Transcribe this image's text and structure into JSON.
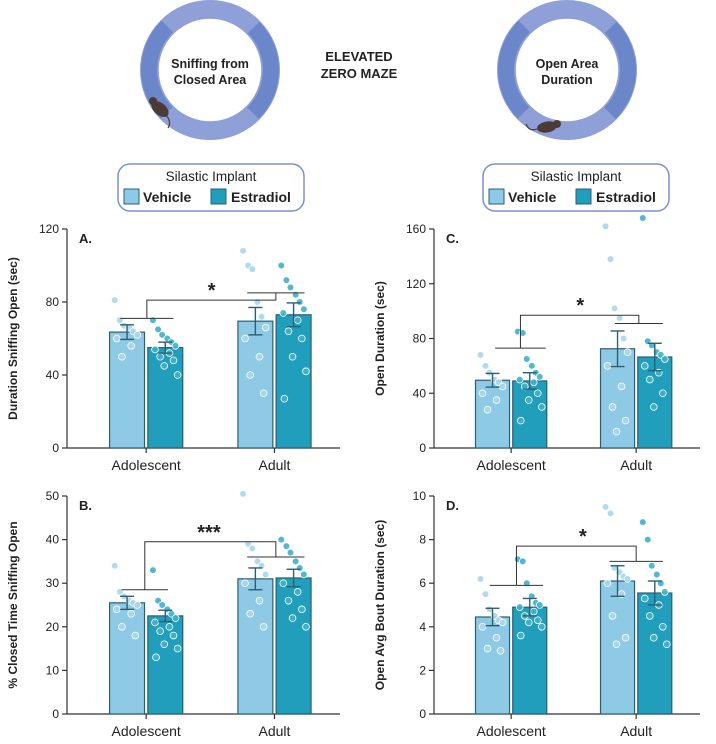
{
  "header": {
    "maze_title_line1": "ELEVATED",
    "maze_title_line2": "ZERO MAZE",
    "left_maze_label_line1": "Sniffing from",
    "left_maze_label_line2": "Closed Area",
    "right_maze_label_line1": "Open Area",
    "right_maze_label_line2": "Duration"
  },
  "legend": {
    "title": "Silastic Implant",
    "vehicle_label": "Vehicle",
    "estradiol_label": "Estradiol"
  },
  "colors": {
    "vehicle": "#8ecae6",
    "estradiol": "#219ebc",
    "edge": "#2c5f74",
    "maze_ring": "#6b86c9",
    "legend_border": "#7b8fd6"
  },
  "chart_data": [
    {
      "id": "A",
      "panel_label": "A.",
      "type": "bar",
      "ylabel": "Duration Sniffing Open (sec)",
      "ylim": [
        0,
        120
      ],
      "yticks": [
        0,
        40,
        80,
        120
      ],
      "categories": [
        "Adolescent",
        "Adult"
      ],
      "series": [
        {
          "name": "Vehicle",
          "values": [
            63.5,
            69.5
          ],
          "sem": [
            4,
            7.5
          ]
        },
        {
          "name": "Estradiol",
          "values": [
            55,
            73
          ],
          "sem": [
            3,
            6.5
          ]
        }
      ],
      "points": {
        "Vehicle": [
          [
            81,
            70,
            67,
            66,
            64,
            62,
            60,
            56,
            50
          ],
          [
            108,
            100,
            98,
            80,
            72,
            66,
            60,
            50,
            40,
            30
          ]
        ],
        "Estradiol": [
          [
            70,
            65,
            62,
            60,
            58,
            56,
            54,
            52,
            50,
            48,
            45,
            40
          ],
          [
            100,
            92,
            88,
            84,
            80,
            76,
            74,
            70,
            64,
            60,
            50,
            42,
            27
          ]
        ]
      },
      "significance": "*"
    },
    {
      "id": "C",
      "panel_label": "C.",
      "type": "bar",
      "ylabel": "Open Duration (sec)",
      "ylim": [
        0,
        160
      ],
      "yticks": [
        0,
        40,
        80,
        120,
        160
      ],
      "categories": [
        "Adolescent",
        "Adult"
      ],
      "series": [
        {
          "name": "Vehicle",
          "values": [
            49.5,
            72.5
          ],
          "sem": [
            5,
            13
          ]
        },
        {
          "name": "Estradiol",
          "values": [
            49,
            66.5
          ],
          "sem": [
            6,
            10
          ]
        }
      ],
      "points": {
        "Vehicle": [
          [
            68,
            60,
            55,
            50,
            48,
            45,
            40,
            35,
            28
          ],
          [
            162,
            138,
            102,
            95,
            80,
            70,
            60,
            45,
            30,
            20,
            12
          ]
        ],
        "Estradiol": [
          [
            85,
            84,
            65,
            60,
            55,
            52,
            50,
            48,
            45,
            40,
            35,
            30,
            20
          ],
          [
            168,
            78,
            75,
            70,
            68,
            65,
            60,
            55,
            50,
            40,
            30
          ]
        ]
      },
      "significance": "*"
    },
    {
      "id": "B",
      "panel_label": "B.",
      "type": "bar",
      "ylabel": "% Closed Time Sniffing Open",
      "ylim": [
        0,
        50
      ],
      "yticks": [
        0,
        10,
        20,
        30,
        40,
        50
      ],
      "categories": [
        "Adolescent",
        "Adult"
      ],
      "series": [
        {
          "name": "Vehicle",
          "values": [
            25.5,
            31
          ],
          "sem": [
            1.5,
            2.5
          ]
        },
        {
          "name": "Estradiol",
          "values": [
            22.5,
            31.2
          ],
          "sem": [
            1.3,
            2
          ]
        }
      ],
      "points": {
        "Vehicle": [
          [
            34,
            28,
            27,
            26,
            25.5,
            25,
            24,
            23,
            20,
            18
          ],
          [
            50.5,
            39,
            38,
            35,
            34,
            32,
            30,
            26,
            23,
            20
          ]
        ],
        "Estradiol": [
          [
            33,
            26,
            25,
            24,
            23,
            22,
            21,
            20,
            19,
            18,
            16,
            15,
            13
          ],
          [
            40,
            38.5,
            37,
            35,
            33.5,
            32,
            30,
            28,
            26,
            24,
            22,
            20
          ]
        ]
      },
      "significance": "***"
    },
    {
      "id": "D",
      "panel_label": "D.",
      "type": "bar",
      "ylabel": "Open  Avg Bout Duration (sec)",
      "ylim": [
        0,
        10
      ],
      "yticks": [
        0,
        2,
        4,
        6,
        8,
        10
      ],
      "categories": [
        "Adolescent",
        "Adult"
      ],
      "series": [
        {
          "name": "Vehicle",
          "values": [
            4.45,
            6.1
          ],
          "sem": [
            0.4,
            0.7
          ]
        },
        {
          "name": "Estradiol",
          "values": [
            4.9,
            5.55
          ],
          "sem": [
            0.4,
            0.55
          ]
        }
      ],
      "points": {
        "Vehicle": [
          [
            6.2,
            5.5,
            4.8,
            4.5,
            4.3,
            4.2,
            4.0,
            3.5,
            3.0,
            2.9
          ],
          [
            9.5,
            9.2,
            6.7,
            6.5,
            6.3,
            6.2,
            6.0,
            5.5,
            4.5,
            3.5,
            3.2
          ]
        ],
        "Estradiol": [
          [
            7.1,
            7.0,
            6.0,
            5.4,
            5.1,
            5.0,
            4.9,
            4.7,
            4.5,
            4.3,
            4.2,
            4.0,
            3.6
          ],
          [
            8.8,
            8.0,
            6.8,
            6.4,
            6.0,
            5.6,
            5.3,
            5.0,
            4.5,
            4.0,
            3.5,
            3.2
          ]
        ]
      },
      "significance": "*"
    }
  ]
}
